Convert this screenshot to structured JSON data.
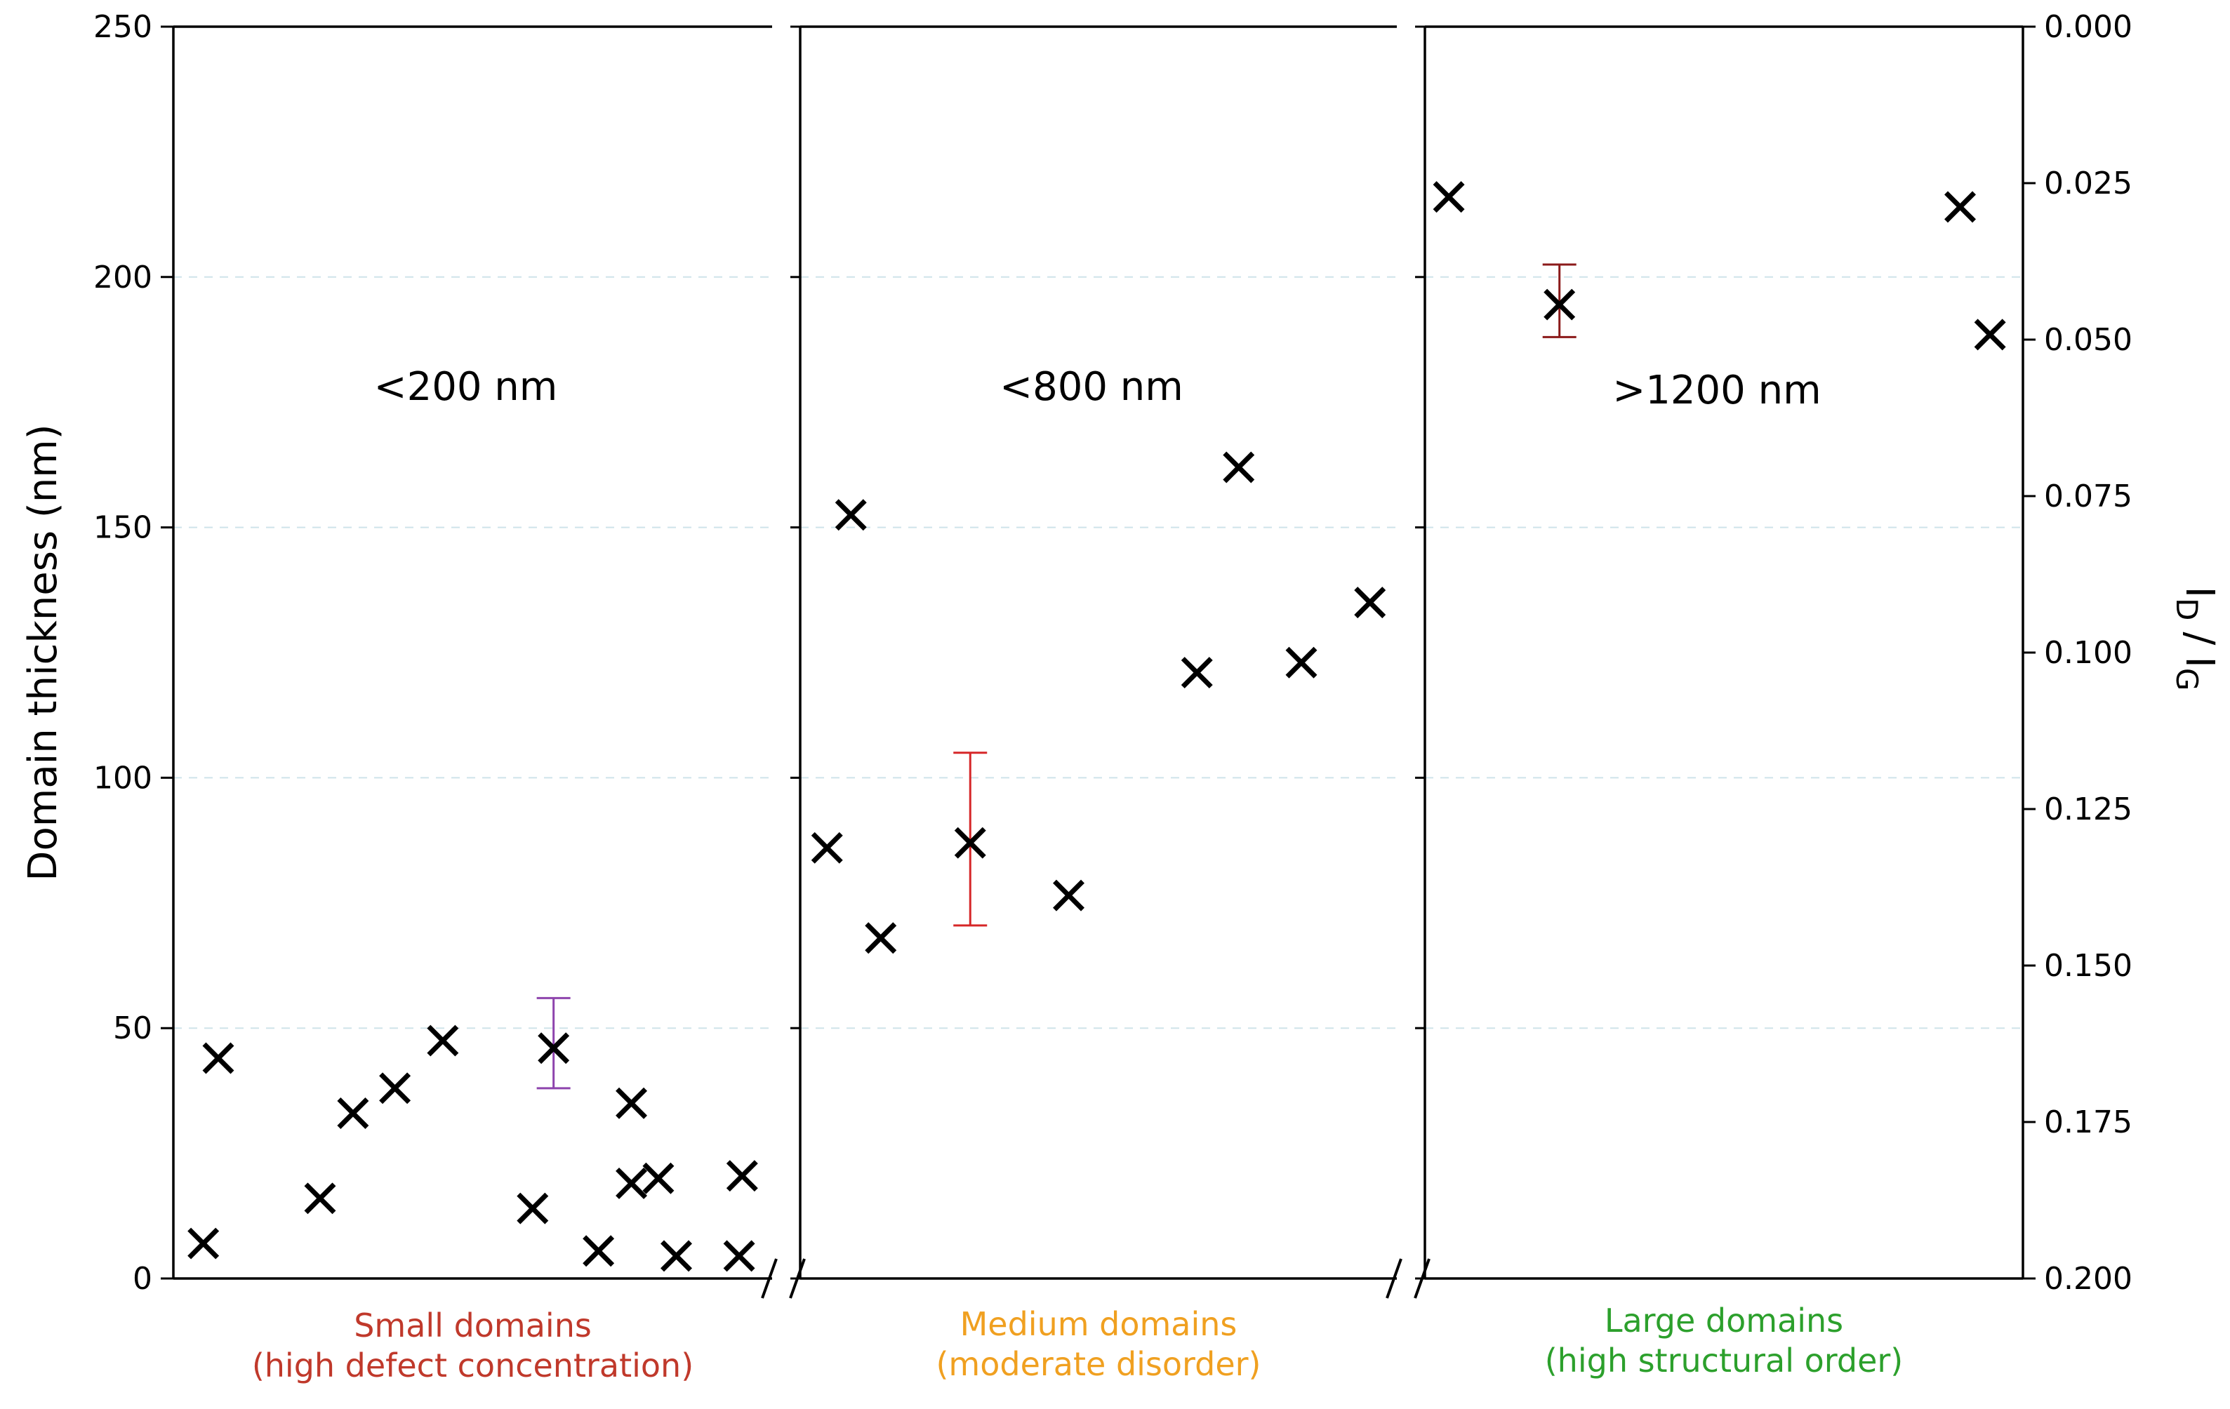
{
  "chart_data": {
    "type": "scatter",
    "ylabel": "Domain thickness (nm)",
    "ylabel2_main": "I",
    "ylabel2_sub_d": "D",
    "ylabel2_slash": "/",
    "ylabel2_main2": "I",
    "ylabel2_sub_g": "G",
    "ylim": [
      0,
      250
    ],
    "y2lim": [
      0.0,
      0.2
    ],
    "y2_inverted": true,
    "grid": true,
    "yticks": [
      0,
      50,
      100,
      150,
      200,
      250
    ],
    "ytick_labels": [
      "0",
      "50",
      "100",
      "150",
      "200",
      "250"
    ],
    "y2ticks": [
      0.0,
      0.025,
      0.05,
      0.075,
      0.1,
      0.125,
      0.15,
      0.175,
      0.2
    ],
    "y2tick_labels": [
      "0.000",
      "0.025",
      "0.050",
      "0.075",
      "0.100",
      "0.125",
      "0.150",
      "0.175",
      "0.200"
    ],
    "panels": [
      {
        "range_label": "<200 nm",
        "category": "Small domains",
        "category_detail": "(high defect concentration)",
        "category_color": "#c0392b",
        "points": [
          {
            "x": 0.05,
            "y": 7
          },
          {
            "x": 0.075,
            "y": 44
          },
          {
            "x": 0.245,
            "y": 16
          },
          {
            "x": 0.3,
            "y": 33
          },
          {
            "x": 0.37,
            "y": 38
          },
          {
            "x": 0.45,
            "y": 47.5
          },
          {
            "x": 0.6,
            "y": 14
          },
          {
            "x": 0.635,
            "y": 46
          },
          {
            "x": 0.71,
            "y": 5.5
          },
          {
            "x": 0.765,
            "y": 35
          },
          {
            "x": 0.765,
            "y": 19
          },
          {
            "x": 0.81,
            "y": 20
          },
          {
            "x": 0.84,
            "y": 4.5
          },
          {
            "x": 0.945,
            "y": 4.5
          },
          {
            "x": 0.95,
            "y": 20.5
          }
        ],
        "errorbars": [
          {
            "x": 0.635,
            "y": 46,
            "low": 38,
            "high": 56,
            "color": "#8e44ad"
          }
        ]
      },
      {
        "range_label": "<800 nm",
        "category": "Medium domains",
        "category_detail": "(moderate disorder)",
        "category_color": "#f0a020",
        "points": [
          {
            "x": 0.045,
            "y": 86
          },
          {
            "x": 0.085,
            "y": 152.5
          },
          {
            "x": 0.135,
            "y": 68
          },
          {
            "x": 0.285,
            "y": 87
          },
          {
            "x": 0.45,
            "y": 76.5
          },
          {
            "x": 0.665,
            "y": 121
          },
          {
            "x": 0.735,
            "y": 162
          },
          {
            "x": 0.84,
            "y": 123
          },
          {
            "x": 0.955,
            "y": 135
          }
        ],
        "errorbars": [
          {
            "x": 0.285,
            "y": 87,
            "low": 70.5,
            "high": 105,
            "color": "#d62728"
          }
        ]
      },
      {
        "range_label": ">1200 nm",
        "category": "Large domains",
        "category_detail": "(high structural order)",
        "category_color": "#2ca02c",
        "points": [
          {
            "x": 0.04,
            "y": 216
          },
          {
            "x": 0.225,
            "y": 194.5
          },
          {
            "x": 0.895,
            "y": 214
          },
          {
            "x": 0.945,
            "y": 188.5
          }
        ],
        "errorbars": [
          {
            "x": 0.225,
            "y": 194.5,
            "low": 188,
            "high": 202.5,
            "color": "#8b1a1a"
          }
        ]
      }
    ]
  }
}
